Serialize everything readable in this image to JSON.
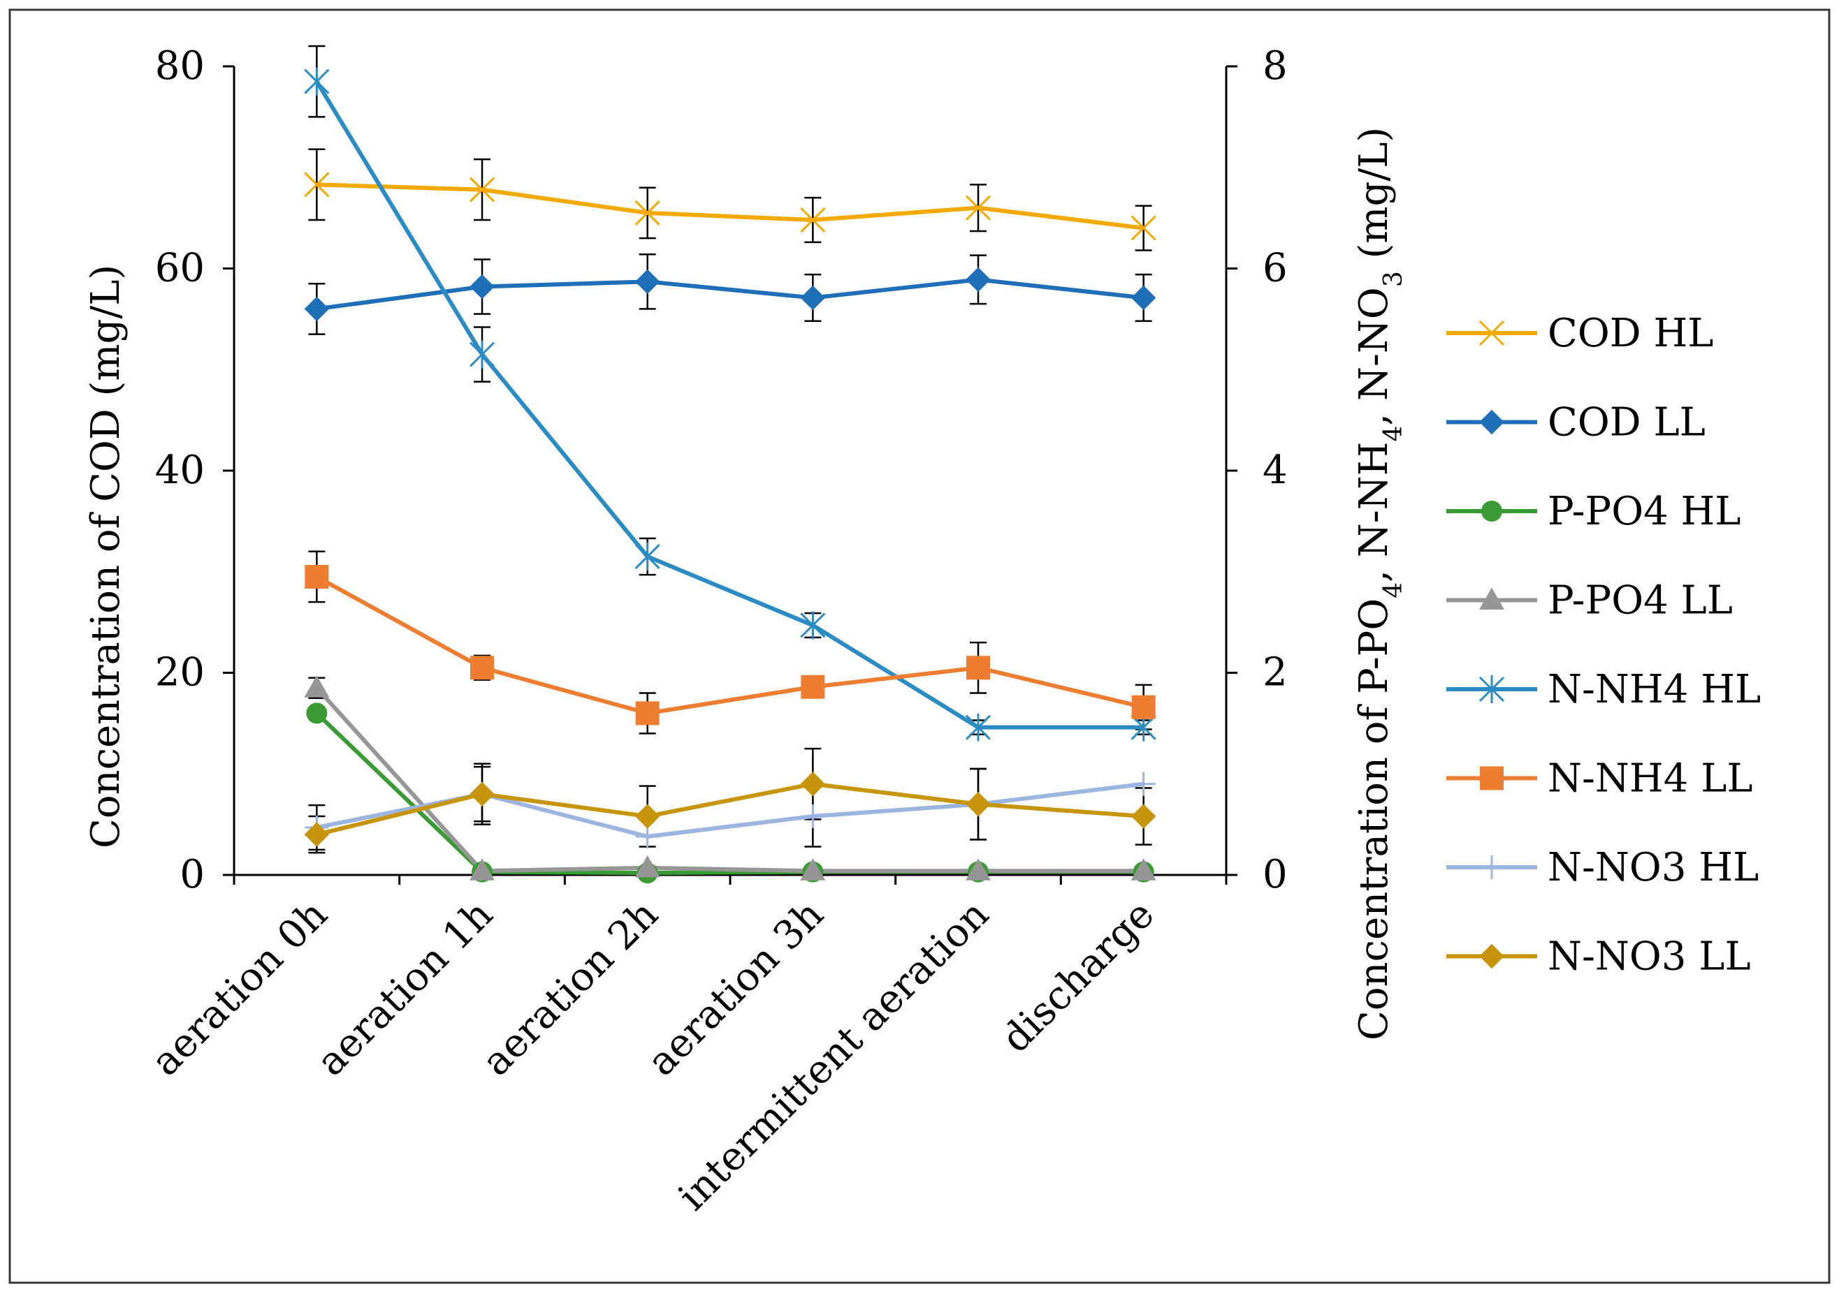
{
  "chart_data": {
    "type": "line",
    "categories": [
      "aeration 0h",
      "aeration 1h",
      "aeration 2h",
      "aeration 3h",
      "intermittent aeration",
      "discharge"
    ],
    "y_left": {
      "label_parts": [
        "Concentration of COD (mg/L)"
      ],
      "ticks": [
        "0",
        "20",
        "40",
        "60",
        "80"
      ],
      "ylim": [
        0,
        80
      ]
    },
    "y_right": {
      "label_parts": [
        "Concentration of P-PO",
        "4",
        ", N-NH",
        "4",
        ", N-NO",
        "3",
        " (mg/L)"
      ],
      "ticks": [
        "0",
        "2",
        "4",
        "6",
        "8"
      ],
      "ylim": [
        0,
        8
      ]
    },
    "grid": false,
    "legend_position": "right",
    "series": [
      {
        "name": "COD HL",
        "axis": "left",
        "color": "#F2A900",
        "marker": "x",
        "values": [
          68.3,
          67.8,
          65.5,
          64.8,
          66.0,
          64.0
        ],
        "err": [
          3.5,
          3.0,
          2.5,
          2.2,
          2.3,
          2.2
        ]
      },
      {
        "name": "COD LL",
        "axis": "left",
        "color": "#1F6FB8",
        "marker": "diamond",
        "values": [
          56.0,
          58.2,
          58.7,
          57.1,
          58.9,
          57.1
        ],
        "err": [
          2.5,
          2.7,
          2.7,
          2.3,
          2.4,
          2.3
        ]
      },
      {
        "name": "P-PO4 HL",
        "axis": "right",
        "color": "#3A9B35",
        "marker": "circle",
        "values": [
          1.6,
          0.03,
          0.02,
          0.03,
          0.03,
          0.03
        ],
        "err": [
          0,
          0,
          0,
          0,
          0,
          0
        ]
      },
      {
        "name": "P-PO4 LL",
        "axis": "right",
        "color": "#969696",
        "marker": "triangle",
        "values": [
          1.85,
          0.04,
          0.07,
          0.04,
          0.04,
          0.04
        ],
        "err": [
          0.1,
          0,
          0,
          0,
          0,
          0
        ]
      },
      {
        "name": "N-NH4 HL",
        "axis": "right",
        "color": "#2B8CC4",
        "marker": "star",
        "values": [
          7.85,
          5.15,
          3.15,
          2.47,
          1.46,
          1.46
        ],
        "err": [
          0.35,
          0.27,
          0.18,
          0.12,
          0.07,
          0.07
        ]
      },
      {
        "name": "N-NH4 LL",
        "axis": "right",
        "color": "#ED7D31",
        "marker": "square",
        "values": [
          2.95,
          2.05,
          1.6,
          1.86,
          2.05,
          1.66
        ],
        "err": [
          0.25,
          0.12,
          0.2,
          0.1,
          0.25,
          0.22
        ]
      },
      {
        "name": "N-NO3 HL",
        "axis": "right",
        "color": "#9CB4E0",
        "marker": "plus",
        "values": [
          0.47,
          0.8,
          0.38,
          0.58,
          0.7,
          0.9
        ],
        "err": [
          0.22,
          0.27,
          0,
          0.3,
          0.35,
          0
        ]
      },
      {
        "name": "N-NO3 LL",
        "axis": "right",
        "color": "#C7950B",
        "marker": "diamond",
        "values": [
          0.4,
          0.8,
          0.58,
          0.9,
          0.7,
          0.58
        ],
        "err": [
          0.18,
          0.3,
          0.3,
          0.35,
          0.35,
          0.28
        ]
      }
    ]
  }
}
